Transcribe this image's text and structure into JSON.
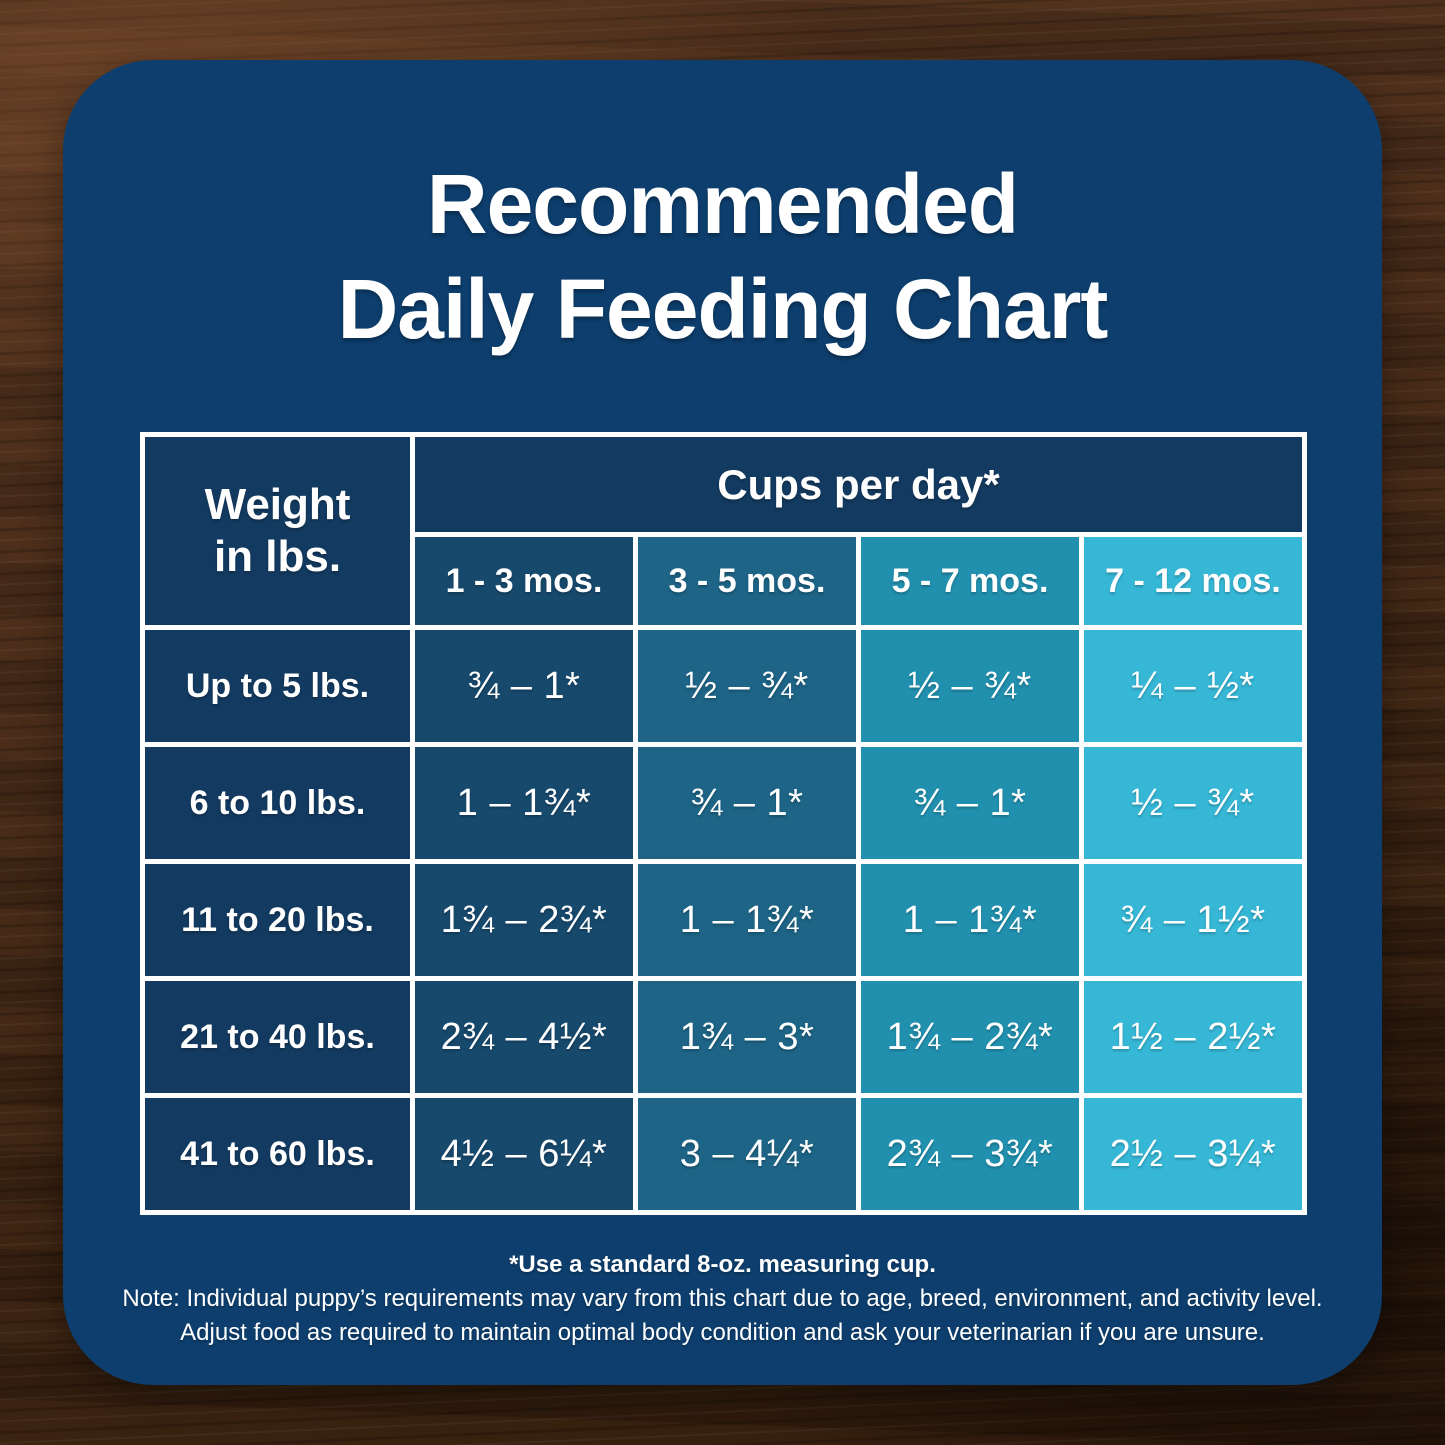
{
  "title": {
    "line1": "Recommended",
    "line2": "Daily Feeding Chart"
  },
  "table": {
    "weight_header_line1": "Weight",
    "weight_header_line2": "in lbs.",
    "cups_header": "Cups per day*",
    "age_columns": [
      "1 - 3 mos.",
      "3 - 5 mos.",
      "5 - 7 mos.",
      "7 - 12 mos."
    ],
    "rows": [
      {
        "weight": "Up to 5 lbs.",
        "values": [
          "¾ – 1*",
          "½ – ¾*",
          "½ – ¾*",
          "¼ – ½*"
        ]
      },
      {
        "weight": "6 to 10 lbs.",
        "values": [
          "1 – 1¾*",
          "¾ – 1*",
          "¾ – 1*",
          "½ – ¾*"
        ]
      },
      {
        "weight": "11 to 20 lbs.",
        "values": [
          "1¾ – 2¾*",
          "1 – 1¾*",
          "1 – 1¾*",
          "¾ – 1½*"
        ]
      },
      {
        "weight": "21 to 40 lbs.",
        "values": [
          "2¾ – 4½*",
          "1¾ – 3*",
          "1¾ – 2¾*",
          "1½ – 2½*"
        ]
      },
      {
        "weight": "41 to 60 lbs.",
        "values": [
          "4½ – 6¼*",
          "3 – 4¼*",
          "2¾ – 3¾*",
          "2½ – 3¼*"
        ]
      }
    ]
  },
  "footer": {
    "measuring_cup_note": "*Use a standard 8-oz. measuring cup.",
    "note_line1": "Note: Individual puppy’s requirements may vary from this chart due to age, breed, environment, and activity level.",
    "note_line2": "Adjust food as required to maintain optimal body condition and ask your veterinarian if you are unsure."
  },
  "colors": {
    "card_background": "#0d3e6d",
    "header_navy_cell": "#133a60",
    "column_1_3_mos": "#17496d",
    "column_3_5_mos": "#1d6486",
    "column_5_7_mos": "#2190ae",
    "column_7_12_mos": "#36b7d6",
    "table_border": "#ffffff",
    "text": "#ffffff",
    "wood_brown": "#4a2d1a"
  },
  "chart_data": {
    "type": "table",
    "title": "Recommended Daily Feeding Chart",
    "unit": "cups per day (standard 8-oz. measuring cup)",
    "columns": [
      "Weight in lbs.",
      "1 - 3 mos.",
      "3 - 5 mos.",
      "5 - 7 mos.",
      "7 - 12 mos."
    ],
    "rows": [
      [
        "Up to 5 lbs.",
        "¾ – 1",
        "½ – ¾",
        "½ – ¾",
        "¼ – ½"
      ],
      [
        "6 to 10 lbs.",
        "1 – 1¾",
        "¾ – 1",
        "¾ – 1",
        "½ – ¾"
      ],
      [
        "11 to 20 lbs.",
        "1¾ – 2¾",
        "1 – 1¾",
        "1 – 1¾",
        "¾ – 1½"
      ],
      [
        "21 to 40 lbs.",
        "2¾ – 4½",
        "1¾ – 3",
        "1¾ – 2¾",
        "1½ – 2½"
      ],
      [
        "41 to 60 lbs.",
        "4½ – 6¼",
        "3 – 4¼",
        "2¾ – 3¾",
        "2½ – 3¼"
      ]
    ],
    "notes": [
      "*Use a standard 8-oz. measuring cup.",
      "Note: Individual puppy’s requirements may vary from this chart due to age, breed, environment, and activity level.",
      "Adjust food as required to maintain optimal body condition and ask your veterinarian if you are unsure."
    ]
  }
}
